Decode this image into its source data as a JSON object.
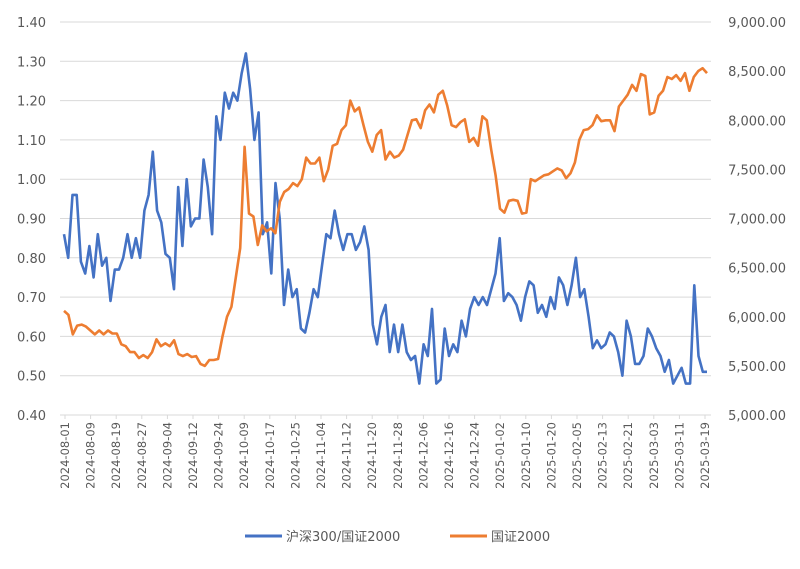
{
  "chart_data": {
    "type": "line",
    "title": "",
    "xlabel": "",
    "ylabel_left": "",
    "ylabel_right": "",
    "legend_position": "bottom",
    "grid": true,
    "y_left": {
      "min": 0.4,
      "max": 1.4,
      "ticks": [
        "0.40",
        "0.50",
        "0.60",
        "0.70",
        "0.80",
        "0.90",
        "1.00",
        "1.10",
        "1.20",
        "1.30",
        "1.40"
      ]
    },
    "y_right": {
      "min": 5000,
      "max": 9000,
      "ticks": [
        "5,000.00",
        "5,500.00",
        "6,000.00",
        "6,500.00",
        "7,000.00",
        "7,500.00",
        "8,000.00",
        "8,500.00",
        "9,000.00"
      ]
    },
    "x_tick_labels": [
      "2024-08-01",
      "2024-08-09",
      "2024-08-19",
      "2024-08-27",
      "2024-09-04",
      "2024-09-12",
      "2024-09-24",
      "2024-10-09",
      "2024-10-17",
      "2024-10-25",
      "2024-11-04",
      "2024-11-12",
      "2024-11-20",
      "2024-11-28",
      "2024-12-06",
      "2024-12-16",
      "2024-12-24",
      "2025-01-02",
      "2025-01-10",
      "2025-01-20",
      "2025-02-05",
      "2025-02-13",
      "2025-02-21",
      "2025-03-03",
      "2025-03-11",
      "2025-03-19"
    ],
    "series": [
      {
        "name": "沪深300/国证2000",
        "axis": "left",
        "color": "#4472C4",
        "values": [
          0.86,
          0.8,
          0.96,
          0.96,
          0.79,
          0.76,
          0.83,
          0.75,
          0.86,
          0.78,
          0.8,
          0.69,
          0.77,
          0.77,
          0.8,
          0.86,
          0.8,
          0.85,
          0.8,
          0.92,
          0.96,
          1.07,
          0.92,
          0.89,
          0.81,
          0.8,
          0.72,
          0.98,
          0.83,
          1.0,
          0.88,
          0.9,
          0.9,
          1.05,
          0.98,
          0.86,
          1.16,
          1.1,
          1.22,
          1.18,
          1.22,
          1.2,
          1.27,
          1.32,
          1.23,
          1.1,
          1.17,
          0.86,
          0.89,
          0.76,
          0.99,
          0.9,
          0.68,
          0.77,
          0.7,
          0.72,
          0.62,
          0.61,
          0.66,
          0.72,
          0.7,
          0.78,
          0.86,
          0.85,
          0.92,
          0.86,
          0.82,
          0.86,
          0.86,
          0.82,
          0.84,
          0.88,
          0.82,
          0.63,
          0.58,
          0.65,
          0.68,
          0.56,
          0.63,
          0.56,
          0.63,
          0.56,
          0.54,
          0.55,
          0.48,
          0.58,
          0.55,
          0.67,
          0.48,
          0.49,
          0.62,
          0.55,
          0.58,
          0.56,
          0.64,
          0.6,
          0.67,
          0.7,
          0.68,
          0.7,
          0.68,
          0.72,
          0.76,
          0.85,
          0.69,
          0.71,
          0.7,
          0.68,
          0.64,
          0.7,
          0.74,
          0.73,
          0.66,
          0.68,
          0.65,
          0.7,
          0.67,
          0.75,
          0.73,
          0.68,
          0.73,
          0.8,
          0.7,
          0.72,
          0.65,
          0.57,
          0.59,
          0.57,
          0.58,
          0.61,
          0.6,
          0.56,
          0.5,
          0.64,
          0.6,
          0.53,
          0.53,
          0.55,
          0.62,
          0.6,
          0.57,
          0.55,
          0.51,
          0.54,
          0.48,
          0.5,
          0.52,
          0.48,
          0.48,
          0.73,
          0.55,
          0.51,
          0.51
        ]
      },
      {
        "name": "国证2000",
        "axis": "right",
        "color": "#ED7D31",
        "values": [
          6060,
          6020,
          5820,
          5910,
          5920,
          5900,
          5860,
          5820,
          5860,
          5820,
          5860,
          5830,
          5830,
          5720,
          5700,
          5640,
          5640,
          5580,
          5610,
          5580,
          5640,
          5770,
          5700,
          5730,
          5700,
          5760,
          5620,
          5600,
          5620,
          5590,
          5600,
          5520,
          5500,
          5560,
          5560,
          5570,
          5800,
          6000,
          6100,
          6400,
          6700,
          7730,
          7050,
          7020,
          6730,
          6930,
          6870,
          6900,
          6850,
          7170,
          7270,
          7300,
          7360,
          7330,
          7400,
          7620,
          7560,
          7560,
          7620,
          7380,
          7500,
          7740,
          7760,
          7900,
          7950,
          8200,
          8090,
          8130,
          7950,
          7780,
          7680,
          7850,
          7900,
          7600,
          7680,
          7620,
          7640,
          7700,
          7850,
          8000,
          8010,
          7920,
          8100,
          8160,
          8080,
          8260,
          8300,
          8150,
          7950,
          7930,
          7980,
          8010,
          7780,
          7820,
          7740,
          8040,
          8000,
          7700,
          7440,
          7100,
          7060,
          7180,
          7190,
          7180,
          7050,
          7060,
          7400,
          7380,
          7410,
          7440,
          7450,
          7480,
          7510,
          7490,
          7410,
          7460,
          7570,
          7800,
          7900,
          7910,
          7950,
          8050,
          7990,
          8000,
          8000,
          7890,
          8140,
          8200,
          8260,
          8360,
          8300,
          8470,
          8450,
          8060,
          8080,
          8250,
          8300,
          8440,
          8420,
          8460,
          8400,
          8480,
          8300,
          8440,
          8500,
          8530,
          8480
        ]
      }
    ]
  }
}
